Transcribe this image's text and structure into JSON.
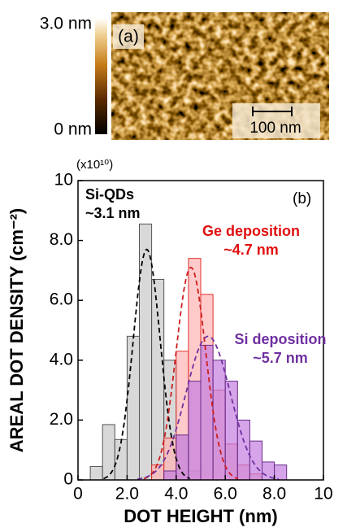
{
  "afm_image": {
    "scale_max": "3.0 nm",
    "scale_min": "0 nm",
    "panel_label": "(a)",
    "scale_bar": "100 nm"
  },
  "chart_data": {
    "type": "histogram",
    "multiplier": "(x10¹⁰)",
    "panel_label": "(b)",
    "x_label": "DOT HEIGHT (nm)",
    "y_label": "AREAL DOT DENSITY (cm⁻²)",
    "xlim": [
      0,
      10
    ],
    "ylim": [
      0,
      10
    ],
    "xticks": [
      0,
      {
        "value": 2,
        "label": "2.0"
      },
      {
        "value": 4,
        "label": "4.0"
      },
      {
        "value": 6,
        "label": "6.0"
      },
      {
        "value": 8,
        "label": "8.0"
      },
      10
    ],
    "yticks": [
      0,
      {
        "value": 2,
        "label": "2.0"
      },
      {
        "value": 4,
        "label": "4.0"
      },
      {
        "value": 6,
        "label": "6.0"
      },
      {
        "value": 8,
        "label": "8.0"
      },
      10
    ],
    "series": [
      {
        "name": "Si-QDs",
        "color": "#c8c8c8",
        "stroke": "#555555",
        "bins": [
          0.5,
          1.0,
          1.5,
          2.0,
          2.5,
          3.0,
          3.5,
          4.0,
          4.5,
          5.0
        ],
        "values": [
          0.45,
          1.85,
          1.35,
          4.8,
          8.55,
          6.7,
          4.0,
          1.5,
          0.3
        ]
      },
      {
        "name": "Ge deposition",
        "color": "#ffb4b4",
        "stroke": "#e03030",
        "bins": [
          3.0,
          3.5,
          4.0,
          4.5,
          5.0,
          5.5,
          6.0,
          6.5,
          7.0,
          7.5
        ],
        "values": [
          0.5,
          1.4,
          4.3,
          7.4,
          6.2,
          3.0,
          1.2,
          0.5,
          0.2
        ]
      },
      {
        "name": "Si deposition",
        "color": "#c37ee0",
        "stroke": "#6a2d8a",
        "bins": [
          3.5,
          4.0,
          4.5,
          5.0,
          5.5,
          6.0,
          6.5,
          7.0,
          7.5,
          8.0,
          8.5
        ],
        "values": [
          0.3,
          1.5,
          3.3,
          4.5,
          4.0,
          3.3,
          2.0,
          1.3,
          0.6,
          0.5
        ]
      }
    ],
    "fits": [
      {
        "mean": 2.8,
        "sigma": 0.55,
        "peak": 7.7,
        "color": "#000000"
      },
      {
        "mean": 4.6,
        "sigma": 0.6,
        "peak": 7.1,
        "color": "#cc1e1e"
      },
      {
        "mean": 5.3,
        "sigma": 0.9,
        "peak": 4.8,
        "color": "#7030a0"
      }
    ],
    "annotations": [
      {
        "lines": [
          "Si-QDs",
          "~3.1 nm"
        ],
        "color": "#000000"
      },
      {
        "lines": [
          "Ge deposition",
          "~4.7 nm"
        ],
        "color": "#e01010"
      },
      {
        "lines": [
          "Si deposition",
          "~5.7 nm"
        ],
        "color": "#7030a0"
      }
    ]
  }
}
